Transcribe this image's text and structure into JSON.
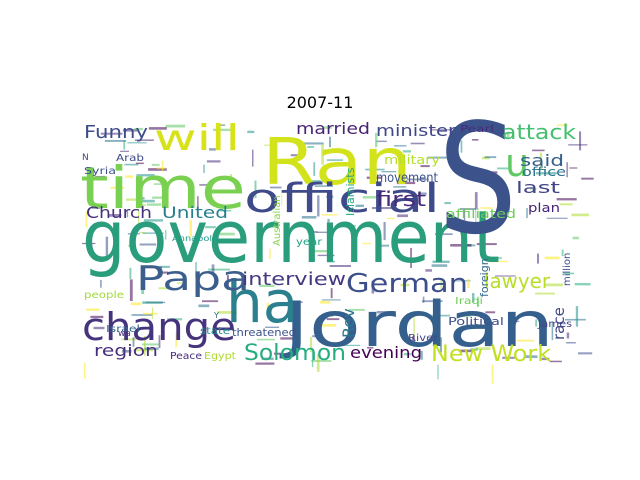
{
  "chart_data": {
    "type": "wordcloud",
    "title": "2007-11",
    "words": [
      {
        "text": "government",
        "weight": 100,
        "color": "#2a9d7c"
      },
      {
        "text": "Jordan",
        "weight": 78,
        "color": "#35608d"
      },
      {
        "text": "S",
        "weight": 100,
        "color": "#3b528b"
      },
      {
        "text": "Ran",
        "weight": 70,
        "color": "#d2e21b"
      },
      {
        "text": "time",
        "weight": 62,
        "color": "#7ad151"
      },
      {
        "text": "ha",
        "weight": 64,
        "color": "#2c7f8e"
      },
      {
        "text": "official",
        "weight": 46,
        "color": "#3e4a89"
      },
      {
        "text": "change",
        "weight": 42,
        "color": "#46337e"
      },
      {
        "text": "Papa",
        "weight": 38,
        "color": "#3b5e8c"
      },
      {
        "text": "will",
        "weight": 36,
        "color": "#d8e219"
      },
      {
        "text": "u",
        "weight": 34,
        "color": "#5ec962"
      },
      {
        "text": "German",
        "weight": 28,
        "color": "#3c4f8a"
      },
      {
        "text": "Solomon",
        "weight": 24,
        "color": "#26ad81"
      },
      {
        "text": "New Work",
        "weight": 22,
        "color": "#c2df23"
      },
      {
        "text": "interview",
        "weight": 18,
        "color": "#453781"
      },
      {
        "text": "attack",
        "weight": 20,
        "color": "#44bf70"
      },
      {
        "text": "first",
        "weight": 20,
        "color": "#482878"
      },
      {
        "text": "lawyer",
        "weight": 20,
        "color": "#b8de29"
      },
      {
        "text": "Funny",
        "weight": 18,
        "color": "#3e4c8a"
      },
      {
        "text": "married",
        "weight": 16,
        "color": "#482475"
      },
      {
        "text": "minister",
        "weight": 16,
        "color": "#3f4788"
      },
      {
        "text": "Church",
        "weight": 16,
        "color": "#46327e"
      },
      {
        "text": "United",
        "weight": 16,
        "color": "#27808e"
      },
      {
        "text": "said",
        "weight": 16,
        "color": "#355f8d"
      },
      {
        "text": "last",
        "weight": 16,
        "color": "#414487"
      },
      {
        "text": "region",
        "weight": 16,
        "color": "#472d7b"
      },
      {
        "text": "evening",
        "weight": 16,
        "color": "#440154"
      },
      {
        "text": "Rev",
        "weight": 16,
        "color": "#2a778e"
      },
      {
        "text": "race",
        "weight": 15,
        "color": "#404688"
      },
      {
        "text": "military",
        "weight": 12,
        "color": "#b5de2b"
      },
      {
        "text": "movement",
        "weight": 13,
        "color": "#3b528b"
      },
      {
        "text": "office",
        "weight": 12,
        "color": "#2c728e"
      },
      {
        "text": "affiliated",
        "weight": 12,
        "color": "#6ccd5a"
      },
      {
        "text": "plan",
        "weight": 12,
        "color": "#482173"
      },
      {
        "text": "foreign",
        "weight": 11,
        "color": "#31688e"
      },
      {
        "text": "Political",
        "weight": 11,
        "color": "#3d4e8a"
      },
      {
        "text": "Islamists",
        "weight": 11,
        "color": "#22a884"
      },
      {
        "text": "Australian",
        "weight": 10,
        "color": "#86d549"
      },
      {
        "text": "threatened",
        "weight": 11,
        "color": "#3b528b"
      },
      {
        "text": "state",
        "weight": 10,
        "color": "#228c8d"
      },
      {
        "text": "Israel",
        "weight": 10,
        "color": "#31688e"
      },
      {
        "text": "Peace",
        "weight": 10,
        "color": "#472a7a"
      },
      {
        "text": "Egypt",
        "weight": 10,
        "color": "#addc30"
      },
      {
        "text": "people",
        "weight": 10,
        "color": "#9fda3a"
      },
      {
        "text": "James",
        "weight": 10,
        "color": "#404588"
      },
      {
        "text": "million",
        "weight": 10,
        "color": "#3d4d8a"
      },
      {
        "text": "River",
        "weight": 10,
        "color": "#3f4889"
      },
      {
        "text": "Iraqi",
        "weight": 10,
        "color": "#6ece58"
      },
      {
        "text": "year",
        "weight": 10,
        "color": "#20a486"
      },
      {
        "text": "Pearl",
        "weight": 10,
        "color": "#472c7a"
      },
      {
        "text": "Syria",
        "weight": 10,
        "color": "#3b528b"
      },
      {
        "text": "Arab",
        "weight": 10,
        "color": "#3e4989"
      },
      {
        "text": "Annapolis",
        "weight": 8,
        "color": "#1f9e89"
      },
      {
        "text": "wa",
        "weight": 9,
        "color": "#46337e"
      },
      {
        "text": "N",
        "weight": 9,
        "color": "#3e4989"
      },
      {
        "text": "Y",
        "weight": 8,
        "color": "#2c728e"
      }
    ]
  }
}
